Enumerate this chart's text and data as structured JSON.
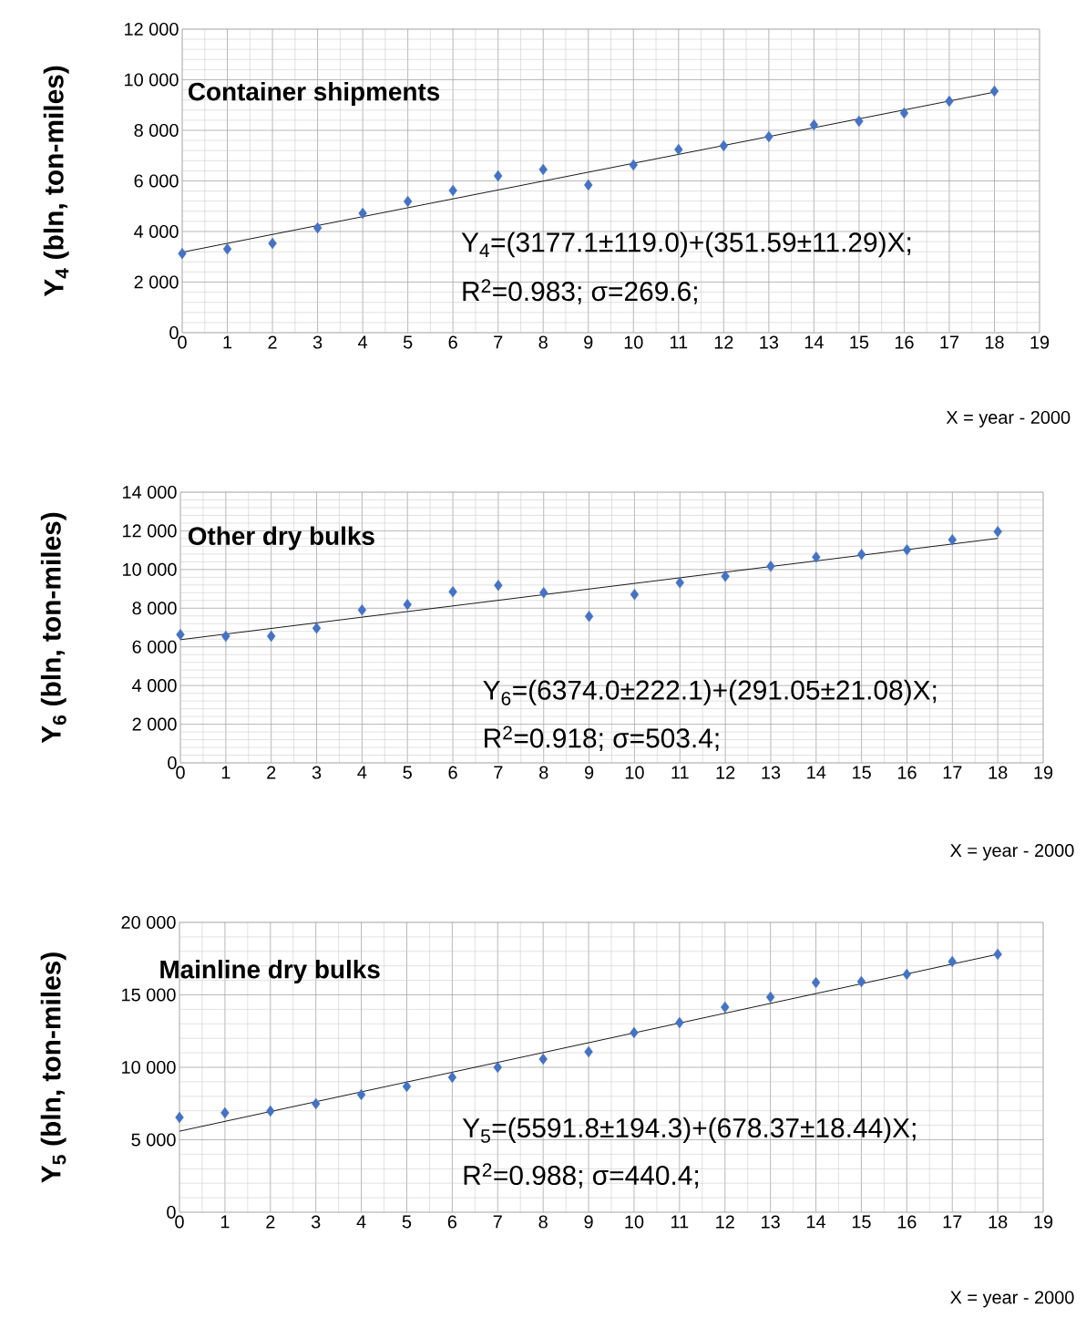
{
  "chart_data": [
    {
      "type": "scatter",
      "title": "Container shipments",
      "xlabel": "X = year - 2000",
      "ylabel": "Y$_{4}$ (bln, ton-miles)",
      "annotations": [
        "Y$_{4}$=(3177.1±119.0)+(351.59±11.29)X;",
        "R$^{2}$=0.983; σ=269.6;"
      ],
      "xlim": [
        0,
        19
      ],
      "xticks": [
        0,
        1,
        2,
        3,
        4,
        5,
        6,
        7,
        8,
        9,
        10,
        11,
        12,
        13,
        14,
        15,
        16,
        17,
        18,
        19
      ],
      "ylim": [
        0,
        12000
      ],
      "yticks": [
        0,
        {
          "value": 2000,
          "label": "2 000"
        },
        {
          "value": 4000,
          "label": "4 000"
        },
        {
          "value": 6000,
          "label": "6 000"
        },
        {
          "value": 8000,
          "label": "8 000"
        },
        {
          "value": 10000,
          "label": "10 000"
        },
        {
          "value": 12000,
          "label": "12 000"
        }
      ],
      "grid": true,
      "series": [
        {
          "type": "scatter",
          "marker": "diamond",
          "color": "#4472c4",
          "x": [
            0,
            1,
            2,
            3,
            4,
            5,
            6,
            7,
            8,
            9,
            10,
            11,
            12,
            13,
            14,
            15,
            16,
            17,
            18
          ],
          "values": [
            3130,
            3310,
            3530,
            4140,
            4720,
            5190,
            5620,
            6200,
            6450,
            5840,
            6630,
            7240,
            7390,
            7750,
            8220,
            8360,
            8680,
            9150,
            9550
          ]
        },
        {
          "type": "line",
          "marker": "none",
          "line_style": "solid",
          "color": "#000000",
          "x": [
            0,
            18
          ],
          "values": [
            3180,
            9510
          ]
        }
      ]
    },
    {
      "type": "scatter",
      "title": "Other dry bulks",
      "xlabel": "X = year - 2000",
      "ylabel": "Y$_{6}$ (bln, ton-miles)",
      "annotations": [
        "Y$_{6}$=(6374.0±222.1)+(291.05±21.08)X;",
        "R$^{2}$=0.918; σ=503.4;"
      ],
      "xlim": [
        0,
        19
      ],
      "xticks": [
        0,
        1,
        2,
        3,
        4,
        5,
        6,
        7,
        8,
        9,
        10,
        11,
        12,
        13,
        14,
        15,
        16,
        17,
        18,
        19
      ],
      "ylim": [
        0,
        14000
      ],
      "yticks": [
        0,
        {
          "value": 2000,
          "label": "2 000"
        },
        {
          "value": 4000,
          "label": "4 000"
        },
        {
          "value": 6000,
          "label": "6 000"
        },
        {
          "value": 8000,
          "label": "8 000"
        },
        {
          "value": 10000,
          "label": "10 000"
        },
        {
          "value": 12000,
          "label": "12 000"
        },
        {
          "value": 14000,
          "label": "14 000"
        }
      ],
      "grid": true,
      "series": [
        {
          "type": "scatter",
          "marker": "diamond",
          "color": "#4472c4",
          "x": [
            0,
            1,
            2,
            3,
            4,
            5,
            6,
            7,
            8,
            9,
            10,
            11,
            12,
            13,
            14,
            15,
            16,
            17,
            18
          ],
          "values": [
            6640,
            6550,
            6550,
            6970,
            7910,
            8190,
            8850,
            9180,
            8800,
            7580,
            8710,
            9320,
            9650,
            10170,
            10640,
            10780,
            11020,
            11540,
            11960
          ]
        },
        {
          "type": "line",
          "marker": "none",
          "line_style": "solid",
          "color": "#000000",
          "x": [
            0,
            18
          ],
          "values": [
            6370,
            11610
          ]
        }
      ]
    },
    {
      "type": "scatter",
      "title": "Mainline dry bulks",
      "xlabel": "X = year - 2000",
      "ylabel": "Y$_{5}$ (bln, ton-miles)",
      "annotations": [
        "Y$_{5}$=(5591.8±194.3)+(678.37±18.44)X;",
        "R$^{2}$=0.988; σ=440.4;"
      ],
      "xlim": [
        0,
        19
      ],
      "xticks": [
        0,
        1,
        2,
        3,
        4,
        5,
        6,
        7,
        8,
        9,
        10,
        11,
        12,
        13,
        14,
        15,
        16,
        17,
        18,
        19
      ],
      "ylim": [
        0,
        20000
      ],
      "yticks": [
        0,
        {
          "value": 5000,
          "label": "5 000"
        },
        {
          "value": 10000,
          "label": "10 000"
        },
        {
          "value": 15000,
          "label": "15 000"
        },
        {
          "value": 20000,
          "label": "20 000"
        }
      ],
      "grid": true,
      "series": [
        {
          "type": "scatter",
          "marker": "diamond",
          "color": "#4472c4",
          "x": [
            0,
            1,
            2,
            3,
            4,
            5,
            6,
            7,
            8,
            9,
            10,
            11,
            12,
            13,
            14,
            15,
            16,
            17,
            18
          ],
          "values": [
            6540,
            6860,
            6980,
            7490,
            8110,
            8680,
            9310,
            10000,
            10570,
            11070,
            12390,
            13080,
            14150,
            14840,
            15850,
            15910,
            16420,
            17300,
            17800
          ]
        },
        {
          "type": "line",
          "marker": "none",
          "line_style": "solid",
          "color": "#000000",
          "x": [
            0,
            18
          ],
          "values": [
            5590,
            17800
          ]
        }
      ]
    }
  ]
}
